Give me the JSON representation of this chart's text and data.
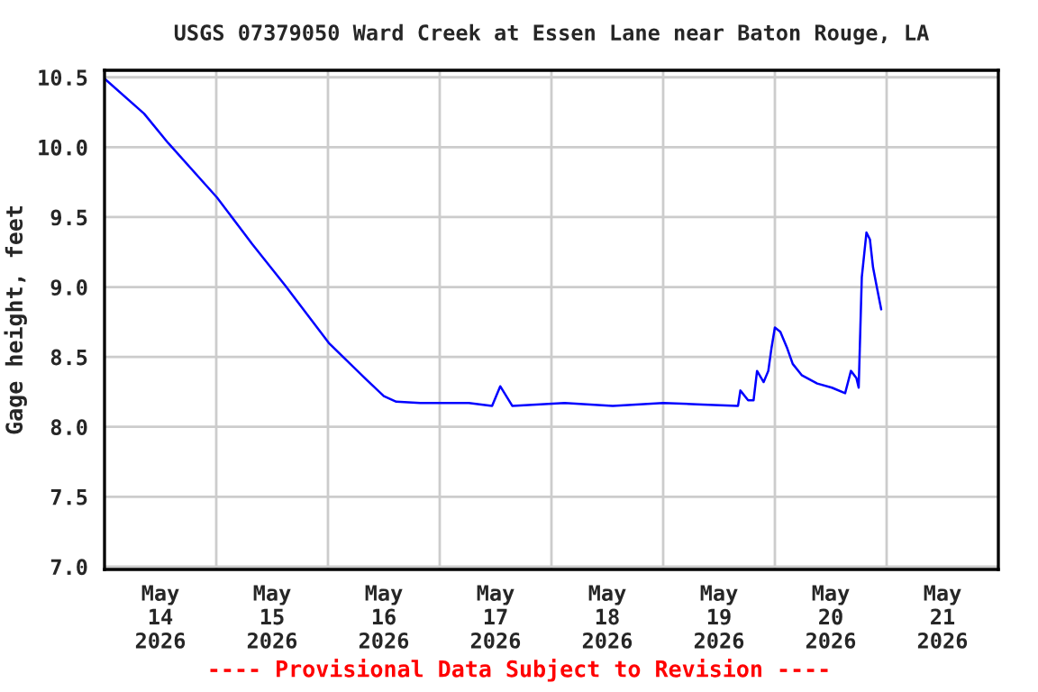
{
  "chart_data": {
    "type": "line",
    "title": "USGS 07379050 Ward Creek at Essen Lane near Baton Rouge, LA",
    "ylabel": "Gage height, feet",
    "annotations": [
      "---- Provisional Data Subject to Revision ----"
    ],
    "xlim": [
      "2026-05-14T00:00",
      "2026-05-22T00:00"
    ],
    "xticks": [
      {
        "value": "2026-05-15T00:00",
        "label": null
      },
      {
        "value": "2026-05-16T00:00",
        "label": null
      },
      {
        "value": "2026-05-17T00:00",
        "label": null
      },
      {
        "value": "2026-05-18T00:00",
        "label": null
      },
      {
        "value": "2026-05-19T00:00",
        "label": null
      },
      {
        "value": "2026-05-20T00:00",
        "label": null
      },
      {
        "value": "2026-05-21T00:00",
        "label": null
      },
      {
        "value": "2026-05-14T12:00",
        "label": "May\n14\n2026"
      },
      {
        "value": "2026-05-15T12:00",
        "label": "May\n15\n2026"
      },
      {
        "value": "2026-05-16T12:00",
        "label": "May\n16\n2026"
      },
      {
        "value": "2026-05-17T12:00",
        "label": "May\n17\n2026"
      },
      {
        "value": "2026-05-18T12:00",
        "label": "May\n18\n2026"
      },
      {
        "value": "2026-05-19T12:00",
        "label": "May\n19\n2026"
      },
      {
        "value": "2026-05-20T12:00",
        "label": "May\n20\n2026"
      },
      {
        "value": "2026-05-21T12:00",
        "label": "May\n21\n2026"
      }
    ],
    "ylim": [
      6.98,
      10.55
    ],
    "yticks": [
      {
        "value": 7.0,
        "label": "7.0"
      },
      {
        "value": 7.5,
        "label": "7.5"
      },
      {
        "value": 8.0,
        "label": "8.0"
      },
      {
        "value": 8.5,
        "label": "8.5"
      },
      {
        "value": 9.0,
        "label": "9.0"
      },
      {
        "value": 9.5,
        "label": "9.5"
      },
      {
        "value": 10.0,
        "label": "10.0"
      },
      {
        "value": 10.5,
        "label": "10.5"
      }
    ],
    "grid": true,
    "legend": false,
    "marker": "none",
    "line_style": "solid",
    "series": [
      {
        "color": "#0000ff",
        "x": [
          "2026-05-14T00:00",
          "2026-05-14T08:30",
          "2026-05-14T13:40",
          "2026-05-15T00:10",
          "2026-05-15T07:40",
          "2026-05-15T14:50",
          "2026-05-16T00:10",
          "2026-05-16T08:10",
          "2026-05-16T12:00",
          "2026-05-16T14:40",
          "2026-05-16T19:50",
          "2026-05-17T06:15",
          "2026-05-17T11:15",
          "2026-05-17T13:00",
          "2026-05-17T15:35",
          "2026-05-18T02:50",
          "2026-05-18T13:10",
          "2026-05-19T00:00",
          "2026-05-19T08:25",
          "2026-05-19T16:05",
          "2026-05-19T16:35",
          "2026-05-19T18:15",
          "2026-05-19T19:25",
          "2026-05-19T20:10",
          "2026-05-19T21:35",
          "2026-05-19T22:35",
          "2026-05-19T23:15",
          "2026-05-20T00:00",
          "2026-05-20T01:10",
          "2026-05-20T02:40",
          "2026-05-20T03:50",
          "2026-05-20T05:45",
          "2026-05-20T09:05",
          "2026-05-20T12:15",
          "2026-05-20T15:05",
          "2026-05-20T16:20",
          "2026-05-20T17:30",
          "2026-05-20T18:00",
          "2026-05-20T18:40",
          "2026-05-20T19:40",
          "2026-05-20T20:25",
          "2026-05-20T21:05",
          "2026-05-20T21:50",
          "2026-05-20T22:50"
        ],
        "values": [
          10.49,
          10.24,
          10.03,
          9.64,
          9.31,
          9.01,
          8.6,
          8.34,
          8.22,
          8.18,
          8.17,
          8.17,
          8.15,
          8.29,
          8.15,
          8.17,
          8.15,
          8.17,
          8.16,
          8.15,
          8.26,
          8.19,
          8.19,
          8.4,
          8.32,
          8.4,
          8.56,
          8.71,
          8.68,
          8.56,
          8.45,
          8.37,
          8.31,
          8.28,
          8.24,
          8.4,
          8.35,
          8.28,
          9.07,
          9.39,
          9.34,
          9.14,
          9.01,
          8.84
        ]
      }
    ]
  }
}
